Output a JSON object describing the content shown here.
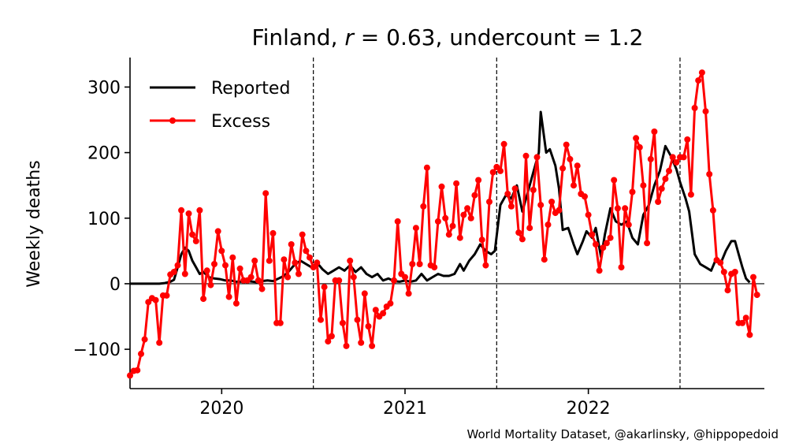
{
  "chart_data": {
    "type": "line",
    "title_prefix": "Finland, ",
    "title_r": "r",
    "title_r_value": " = 0.63, undercount = 1.2",
    "ylabel": "Weekly deaths",
    "xlabel": "",
    "credit": "World Mortality Dataset, @akarlinsky, @hippopedoid",
    "ylim": [
      -160,
      345
    ],
    "xlim": [
      2019.5,
      2022.96
    ],
    "y_ticks": [
      {
        "value": -100,
        "label": "−100"
      },
      {
        "value": 0,
        "label": "0"
      },
      {
        "value": 100,
        "label": "100"
      },
      {
        "value": 200,
        "label": "200"
      },
      {
        "value": 300,
        "label": "300"
      }
    ],
    "x_ticks": [
      {
        "value": 2020,
        "label": "2020"
      },
      {
        "value": 2021,
        "label": "2021"
      },
      {
        "value": 2022,
        "label": "2022"
      }
    ],
    "vlines": [
      2020.5,
      2021.5,
      2022.5
    ],
    "zero_line": true,
    "grid": false,
    "legend_position": "top-left",
    "colors": {
      "reported": "#000000",
      "excess": "#ff0000"
    },
    "series": [
      {
        "name": "Reported",
        "marker": false,
        "points": [
          [
            2019.5,
            0
          ],
          [
            2019.58,
            0
          ],
          [
            2019.66,
            0
          ],
          [
            2019.69,
            1
          ],
          [
            2019.72,
            3
          ],
          [
            2019.74,
            6
          ],
          [
            2019.76,
            25
          ],
          [
            2019.78,
            45
          ],
          [
            2019.8,
            55
          ],
          [
            2019.82,
            50
          ],
          [
            2019.84,
            35
          ],
          [
            2019.86,
            25
          ],
          [
            2019.88,
            15
          ],
          [
            2019.9,
            18
          ],
          [
            2019.93,
            10
          ],
          [
            2019.96,
            8
          ],
          [
            2019.99,
            7
          ],
          [
            2020.02,
            5
          ],
          [
            2020.05,
            5
          ],
          [
            2020.08,
            3
          ],
          [
            2020.11,
            3
          ],
          [
            2020.14,
            4
          ],
          [
            2020.17,
            3
          ],
          [
            2020.2,
            2
          ],
          [
            2020.22,
            4
          ],
          [
            2020.25,
            5
          ],
          [
            2020.28,
            4
          ],
          [
            2020.31,
            8
          ],
          [
            2020.34,
            12
          ],
          [
            2020.37,
            20
          ],
          [
            2020.4,
            30
          ],
          [
            2020.43,
            35
          ],
          [
            2020.46,
            30
          ],
          [
            2020.49,
            25
          ],
          [
            2020.52,
            32
          ],
          [
            2020.55,
            22
          ],
          [
            2020.58,
            15
          ],
          [
            2020.61,
            20
          ],
          [
            2020.64,
            25
          ],
          [
            2020.67,
            20
          ],
          [
            2020.7,
            28
          ],
          [
            2020.73,
            18
          ],
          [
            2020.76,
            25
          ],
          [
            2020.79,
            15
          ],
          [
            2020.82,
            10
          ],
          [
            2020.85,
            15
          ],
          [
            2020.88,
            5
          ],
          [
            2020.91,
            8
          ],
          [
            2020.94,
            4
          ],
          [
            2020.97,
            3
          ],
          [
            2021.0,
            5
          ],
          [
            2021.03,
            3
          ],
          [
            2021.06,
            5
          ],
          [
            2021.09,
            15
          ],
          [
            2021.12,
            5
          ],
          [
            2021.15,
            10
          ],
          [
            2021.18,
            15
          ],
          [
            2021.21,
            12
          ],
          [
            2021.24,
            12
          ],
          [
            2021.27,
            15
          ],
          [
            2021.3,
            30
          ],
          [
            2021.32,
            20
          ],
          [
            2021.35,
            35
          ],
          [
            2021.38,
            45
          ],
          [
            2021.41,
            60
          ],
          [
            2021.44,
            50
          ],
          [
            2021.47,
            45
          ],
          [
            2021.49,
            50
          ],
          [
            2021.52,
            120
          ],
          [
            2021.55,
            135
          ],
          [
            2021.58,
            130
          ],
          [
            2021.61,
            150
          ],
          [
            2021.64,
            110
          ],
          [
            2021.67,
            140
          ],
          [
            2021.7,
            170
          ],
          [
            2021.73,
            200
          ],
          [
            2021.74,
            262
          ],
          [
            2021.77,
            200
          ],
          [
            2021.79,
            205
          ],
          [
            2021.82,
            180
          ],
          [
            2021.84,
            145
          ],
          [
            2021.86,
            82
          ],
          [
            2021.89,
            85
          ],
          [
            2021.92,
            60
          ],
          [
            2021.94,
            45
          ],
          [
            2021.97,
            65
          ],
          [
            2021.99,
            80
          ],
          [
            2022.02,
            70
          ],
          [
            2022.04,
            85
          ],
          [
            2022.07,
            40
          ],
          [
            2022.09,
            75
          ],
          [
            2022.12,
            115
          ],
          [
            2022.15,
            95
          ],
          [
            2022.18,
            90
          ],
          [
            2022.21,
            95
          ],
          [
            2022.24,
            70
          ],
          [
            2022.27,
            60
          ],
          [
            2022.3,
            105
          ],
          [
            2022.33,
            120
          ],
          [
            2022.36,
            150
          ],
          [
            2022.39,
            172
          ],
          [
            2022.42,
            210
          ],
          [
            2022.45,
            195
          ],
          [
            2022.48,
            175
          ],
          [
            2022.5,
            155
          ],
          [
            2022.53,
            130
          ],
          [
            2022.55,
            110
          ],
          [
            2022.58,
            45
          ],
          [
            2022.61,
            30
          ],
          [
            2022.64,
            25
          ],
          [
            2022.67,
            20
          ],
          [
            2022.7,
            40
          ],
          [
            2022.72,
            30
          ],
          [
            2022.75,
            50
          ],
          [
            2022.78,
            65
          ],
          [
            2022.8,
            65
          ],
          [
            2022.82,
            45
          ],
          [
            2022.84,
            25
          ],
          [
            2022.86,
            8
          ],
          [
            2022.88,
            2
          ]
        ]
      },
      {
        "name": "Excess",
        "marker": true,
        "points": [
          [
            2019.5,
            -140
          ],
          [
            2019.52,
            -133
          ],
          [
            2019.54,
            -132
          ],
          [
            2019.56,
            -107
          ],
          [
            2019.58,
            -85
          ],
          [
            2019.6,
            -28
          ],
          [
            2019.62,
            -22
          ],
          [
            2019.64,
            -25
          ],
          [
            2019.66,
            -90
          ],
          [
            2019.68,
            -18
          ],
          [
            2019.7,
            -18
          ],
          [
            2019.72,
            14
          ],
          [
            2019.74,
            18
          ],
          [
            2019.76,
            28
          ],
          [
            2019.78,
            112
          ],
          [
            2019.8,
            15
          ],
          [
            2019.82,
            107
          ],
          [
            2019.84,
            75
          ],
          [
            2019.86,
            65
          ],
          [
            2019.88,
            112
          ],
          [
            2019.9,
            -23
          ],
          [
            2019.92,
            20
          ],
          [
            2019.94,
            -2
          ],
          [
            2019.96,
            30
          ],
          [
            2019.98,
            80
          ],
          [
            2020.0,
            50
          ],
          [
            2020.02,
            28
          ],
          [
            2020.04,
            -20
          ],
          [
            2020.06,
            40
          ],
          [
            2020.08,
            -30
          ],
          [
            2020.1,
            23
          ],
          [
            2020.12,
            5
          ],
          [
            2020.14,
            5
          ],
          [
            2020.16,
            10
          ],
          [
            2020.18,
            35
          ],
          [
            2020.2,
            5
          ],
          [
            2020.22,
            -8
          ],
          [
            2020.24,
            138
          ],
          [
            2020.26,
            35
          ],
          [
            2020.28,
            77
          ],
          [
            2020.3,
            -60
          ],
          [
            2020.32,
            -60
          ],
          [
            2020.34,
            37
          ],
          [
            2020.36,
            10
          ],
          [
            2020.38,
            60
          ],
          [
            2020.4,
            32
          ],
          [
            2020.42,
            15
          ],
          [
            2020.44,
            75
          ],
          [
            2020.46,
            50
          ],
          [
            2020.48,
            40
          ],
          [
            2020.5,
            25
          ],
          [
            2020.52,
            32
          ],
          [
            2020.54,
            -55
          ],
          [
            2020.56,
            -5
          ],
          [
            2020.58,
            -88
          ],
          [
            2020.6,
            -80
          ],
          [
            2020.62,
            5
          ],
          [
            2020.64,
            5
          ],
          [
            2020.66,
            -60
          ],
          [
            2020.68,
            -95
          ],
          [
            2020.7,
            35
          ],
          [
            2020.72,
            10
          ],
          [
            2020.74,
            -55
          ],
          [
            2020.76,
            -90
          ],
          [
            2020.78,
            -15
          ],
          [
            2020.8,
            -65
          ],
          [
            2020.82,
            -95
          ],
          [
            2020.84,
            -40
          ],
          [
            2020.86,
            -50
          ],
          [
            2020.88,
            -45
          ],
          [
            2020.9,
            -35
          ],
          [
            2020.92,
            -30
          ],
          [
            2020.94,
            5
          ],
          [
            2020.96,
            95
          ],
          [
            2020.98,
            15
          ],
          [
            2021.0,
            10
          ],
          [
            2021.02,
            -15
          ],
          [
            2021.04,
            30
          ],
          [
            2021.06,
            85
          ],
          [
            2021.08,
            30
          ],
          [
            2021.1,
            118
          ],
          [
            2021.12,
            177
          ],
          [
            2021.14,
            28
          ],
          [
            2021.16,
            25
          ],
          [
            2021.18,
            95
          ],
          [
            2021.2,
            148
          ],
          [
            2021.22,
            100
          ],
          [
            2021.24,
            75
          ],
          [
            2021.26,
            88
          ],
          [
            2021.28,
            153
          ],
          [
            2021.3,
            70
          ],
          [
            2021.32,
            105
          ],
          [
            2021.34,
            115
          ],
          [
            2021.36,
            100
          ],
          [
            2021.38,
            135
          ],
          [
            2021.4,
            158
          ],
          [
            2021.42,
            67
          ],
          [
            2021.44,
            28
          ],
          [
            2021.46,
            125
          ],
          [
            2021.48,
            170
          ],
          [
            2021.5,
            178
          ],
          [
            2021.52,
            172
          ],
          [
            2021.54,
            213
          ],
          [
            2021.56,
            137
          ],
          [
            2021.58,
            118
          ],
          [
            2021.6,
            145
          ],
          [
            2021.62,
            78
          ],
          [
            2021.64,
            68
          ],
          [
            2021.66,
            195
          ],
          [
            2021.68,
            85
          ],
          [
            2021.7,
            143
          ],
          [
            2021.72,
            193
          ],
          [
            2021.74,
            120
          ],
          [
            2021.76,
            37
          ],
          [
            2021.78,
            90
          ],
          [
            2021.8,
            125
          ],
          [
            2021.82,
            108
          ],
          [
            2021.84,
            112
          ],
          [
            2021.86,
            176
          ],
          [
            2021.88,
            212
          ],
          [
            2021.9,
            190
          ],
          [
            2021.92,
            150
          ],
          [
            2021.94,
            180
          ],
          [
            2021.96,
            137
          ],
          [
            2021.98,
            133
          ],
          [
            2022.0,
            105
          ],
          [
            2022.02,
            75
          ],
          [
            2022.04,
            60
          ],
          [
            2022.06,
            20
          ],
          [
            2022.08,
            55
          ],
          [
            2022.1,
            62
          ],
          [
            2022.12,
            70
          ],
          [
            2022.14,
            158
          ],
          [
            2022.16,
            115
          ],
          [
            2022.18,
            25
          ],
          [
            2022.2,
            115
          ],
          [
            2022.22,
            90
          ],
          [
            2022.24,
            140
          ],
          [
            2022.26,
            222
          ],
          [
            2022.28,
            208
          ],
          [
            2022.3,
            150
          ],
          [
            2022.32,
            62
          ],
          [
            2022.34,
            190
          ],
          [
            2022.36,
            232
          ],
          [
            2022.38,
            125
          ],
          [
            2022.4,
            145
          ],
          [
            2022.42,
            160
          ],
          [
            2022.44,
            172
          ],
          [
            2022.46,
            193
          ],
          [
            2022.48,
            185
          ],
          [
            2022.5,
            193
          ],
          [
            2022.52,
            193
          ],
          [
            2022.54,
            220
          ],
          [
            2022.56,
            136
          ],
          [
            2022.58,
            268
          ],
          [
            2022.6,
            310
          ],
          [
            2022.62,
            322
          ],
          [
            2022.64,
            263
          ],
          [
            2022.66,
            167
          ],
          [
            2022.68,
            112
          ],
          [
            2022.7,
            36
          ],
          [
            2022.72,
            32
          ],
          [
            2022.74,
            18
          ],
          [
            2022.76,
            -10
          ],
          [
            2022.78,
            15
          ],
          [
            2022.8,
            18
          ],
          [
            2022.82,
            -60
          ],
          [
            2022.84,
            -60
          ],
          [
            2022.86,
            -52
          ],
          [
            2022.88,
            -78
          ],
          [
            2022.9,
            10
          ],
          [
            2022.92,
            -17
          ]
        ]
      }
    ]
  }
}
